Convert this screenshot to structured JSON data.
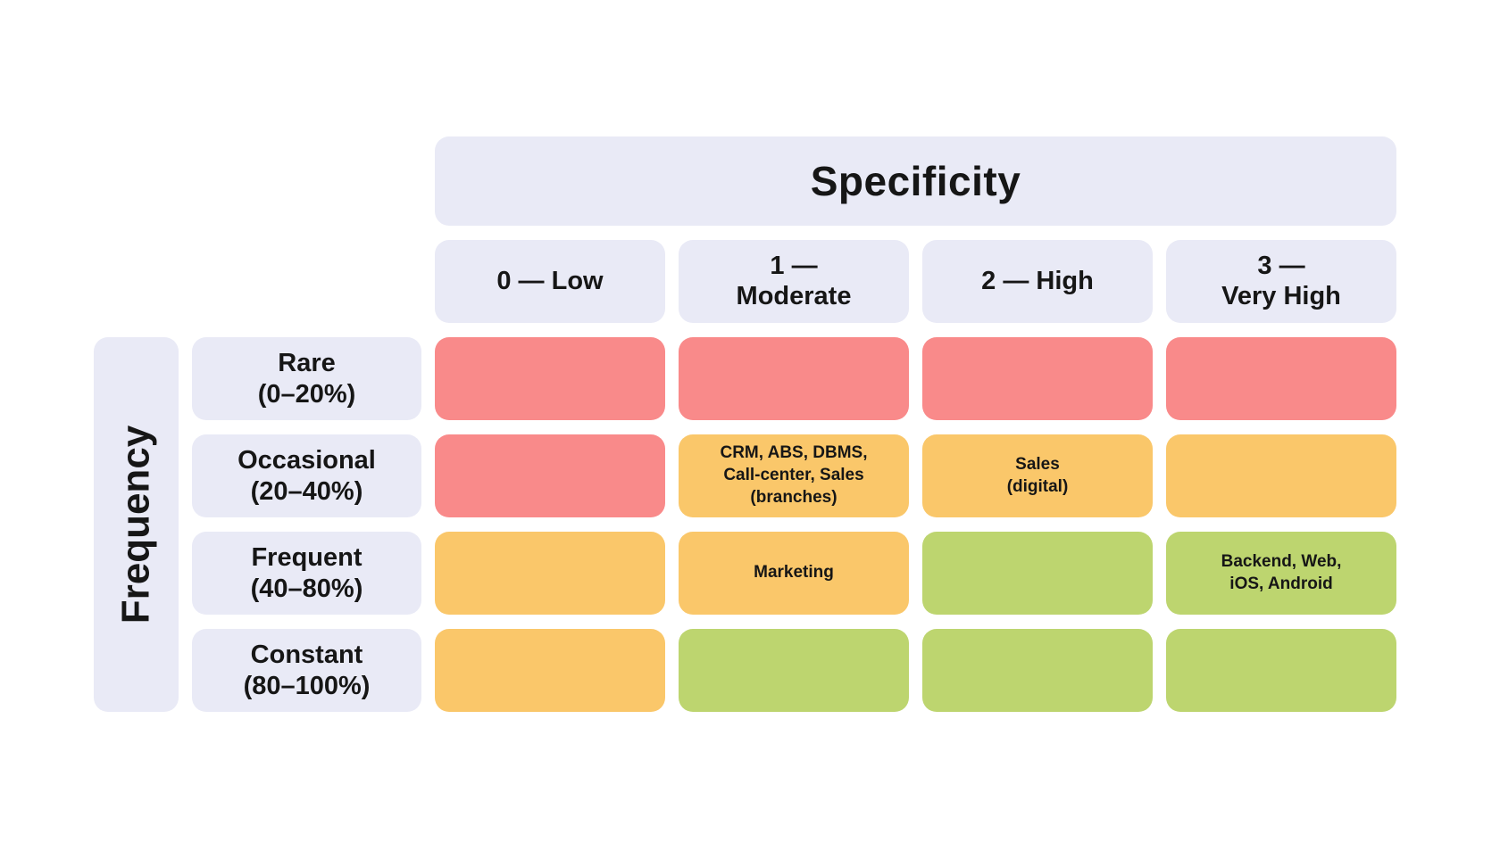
{
  "colors": {
    "header_bg": "#E9EAF6",
    "red": "#F98A8A",
    "orange": "#FAC76A",
    "green": "#BDD56F",
    "text": "#161616"
  },
  "matrix": {
    "column_axis_title": "Specificity",
    "row_axis_title": "Frequency",
    "column_headers": [
      "0 — Low",
      "1 —\nModerate",
      "2 — High",
      "3 —\nVery High"
    ],
    "rows": [
      {
        "label": "Rare\n(0–20%)",
        "cells": [
          {
            "level": "red",
            "text": ""
          },
          {
            "level": "red",
            "text": ""
          },
          {
            "level": "red",
            "text": ""
          },
          {
            "level": "red",
            "text": ""
          }
        ]
      },
      {
        "label": "Occasional\n(20–40%)",
        "cells": [
          {
            "level": "red",
            "text": ""
          },
          {
            "level": "orange",
            "text": "CRM, ABS, DBMS,\nCall-center, Sales\n(branches)"
          },
          {
            "level": "orange",
            "text": "Sales\n(digital)"
          },
          {
            "level": "orange",
            "text": ""
          }
        ]
      },
      {
        "label": "Frequent\n(40–80%)",
        "cells": [
          {
            "level": "orange",
            "text": ""
          },
          {
            "level": "orange",
            "text": "Marketing"
          },
          {
            "level": "green",
            "text": ""
          },
          {
            "level": "green",
            "text": "Backend, Web,\niOS, Android"
          }
        ]
      },
      {
        "label": "Constant\n(80–100%)",
        "cells": [
          {
            "level": "orange",
            "text": ""
          },
          {
            "level": "green",
            "text": ""
          },
          {
            "level": "green",
            "text": ""
          },
          {
            "level": "green",
            "text": ""
          }
        ]
      }
    ]
  }
}
